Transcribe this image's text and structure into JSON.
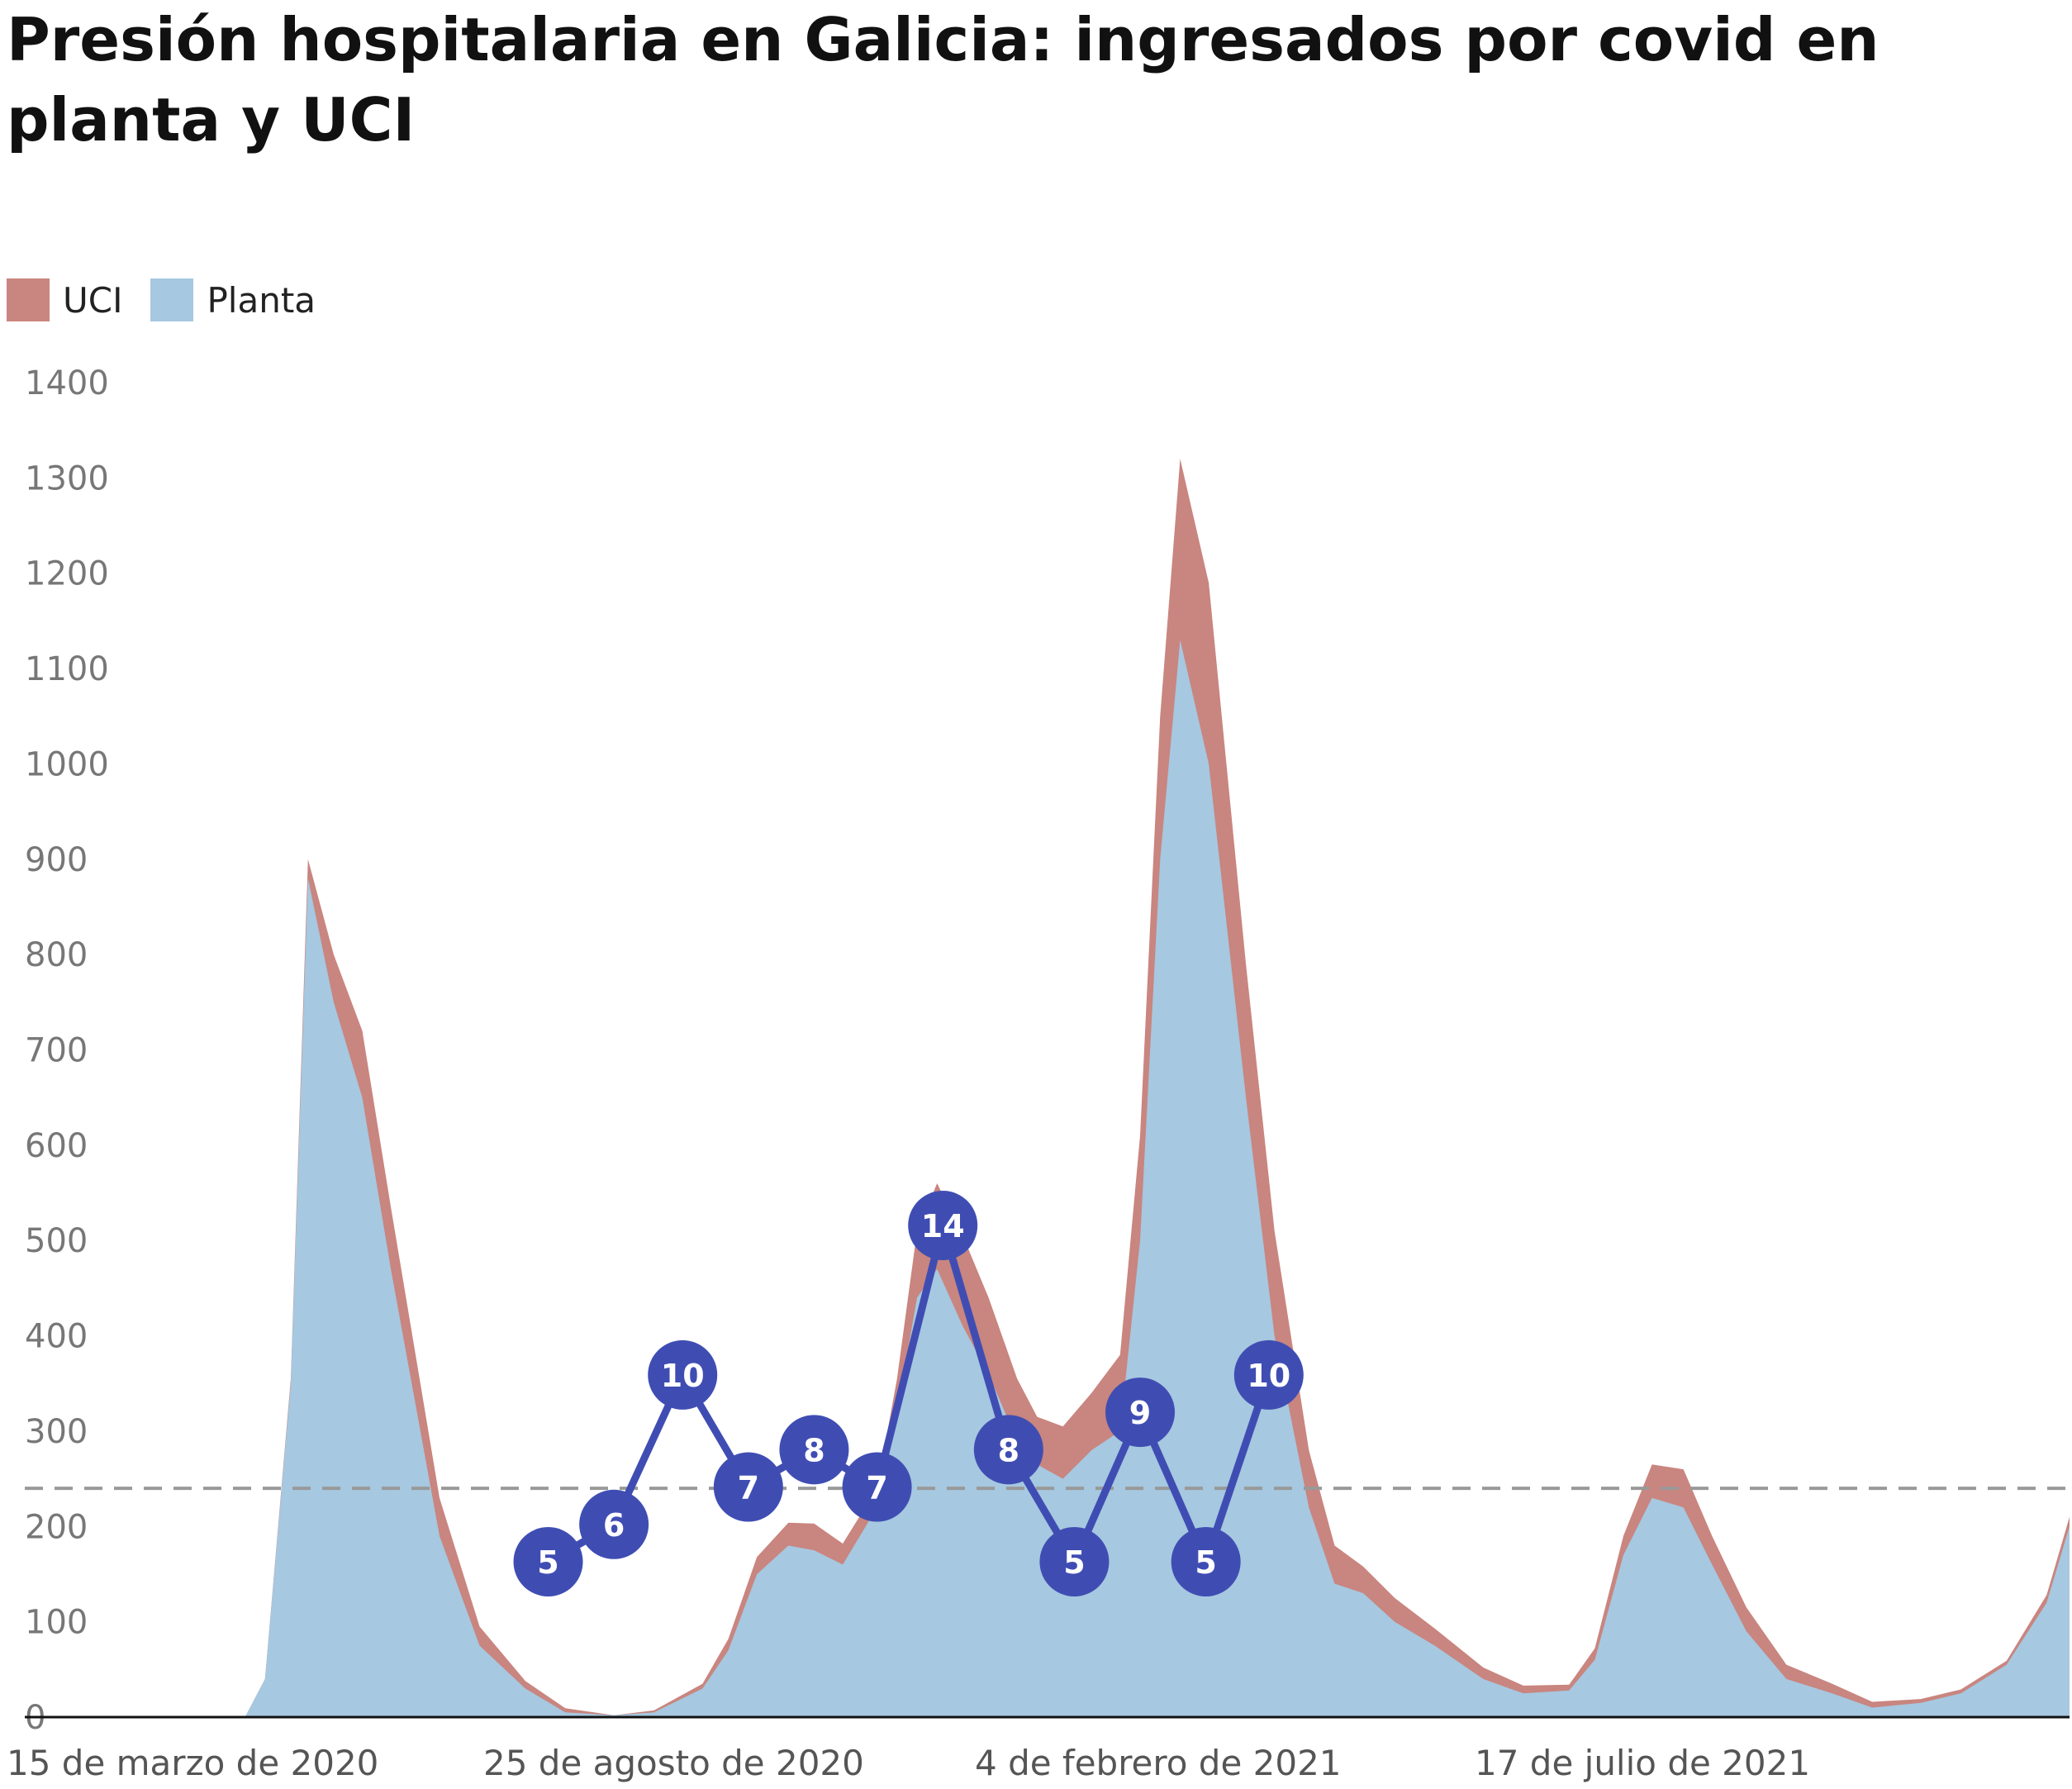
{
  "chart_data": {
    "type": "area",
    "title": "Presión hospitalaria en Galicia: ingresados por covid en planta y UCI",
    "stacked": true,
    "xlabel": "",
    "ylabel": "",
    "x_range": [
      "2020-03-15",
      "2021-12-23"
    ],
    "ylim": [
      0,
      1400
    ],
    "y_ticks": [
      0,
      100,
      200,
      300,
      400,
      500,
      600,
      700,
      800,
      900,
      1000,
      1100,
      1200,
      1300,
      1400
    ],
    "x_tick_labels": [
      {
        "date": "2020-03-15",
        "label": "15 de marzo de 2020"
      },
      {
        "date": "2020-08-25",
        "label": "25 de agosto de 2020"
      },
      {
        "date": "2021-02-04",
        "label": "4 de febrero de 2021"
      },
      {
        "date": "2021-07-17",
        "label": "17 de julio de 2021"
      }
    ],
    "legend_position": "top-left",
    "grid": false,
    "reference_line": {
      "value": 240,
      "style": "dashed",
      "color": "#999999"
    },
    "series": [
      {
        "name": "UCI",
        "color": "#c9857f",
        "x": [
          "2020-04-10",
          "2020-04-16",
          "2020-04-25",
          "2020-05-05",
          "2020-05-15",
          "2020-06-01",
          "2020-06-15",
          "2020-07-01",
          "2020-08-01",
          "2020-08-15",
          "2020-09-01",
          "2020-09-10",
          "2020-09-20",
          "2020-10-01",
          "2020-10-10",
          "2020-10-20",
          "2020-11-01",
          "2020-11-08",
          "2020-11-15",
          "2020-11-22",
          "2020-12-01",
          "2020-12-10",
          "2020-12-20",
          "2020-12-27",
          "2021-01-05",
          "2021-01-15",
          "2021-01-25",
          "2021-02-01",
          "2021-02-08",
          "2021-02-15",
          "2021-02-25",
          "2021-03-10",
          "2021-03-20",
          "2021-04-01",
          "2021-04-10",
          "2021-04-20",
          "2021-05-01",
          "2021-05-15",
          "2021-06-01",
          "2021-06-15",
          "2021-07-01",
          "2021-07-10",
          "2021-07-20",
          "2021-07-30",
          "2021-08-10",
          "2021-08-20",
          "2021-09-01",
          "2021-09-15",
          "2021-10-01",
          "2021-10-15",
          "2021-11-01",
          "2021-11-15",
          "2021-12-01",
          "2021-12-15",
          "2021-12-23"
        ],
        "values": [
          5,
          20,
          50,
          70,
          65,
          40,
          20,
          8,
          0,
          2,
          5,
          12,
          18,
          24,
          28,
          22,
          20,
          35,
          70,
          90,
          95,
          80,
          65,
          50,
          55,
          60,
          80,
          110,
          150,
          190,
          190,
          140,
          110,
          60,
          40,
          28,
          25,
          18,
          12,
          8,
          6,
          12,
          20,
          35,
          40,
          30,
          25,
          15,
          10,
          6,
          4,
          4,
          4,
          8,
          10
        ]
      },
      {
        "name": "Planta",
        "color": "#a6c8e0",
        "x": [
          "2020-03-15",
          "2020-03-25",
          "2020-04-01",
          "2020-04-10",
          "2020-04-16",
          "2020-04-25",
          "2020-05-05",
          "2020-05-15",
          "2020-06-01",
          "2020-06-15",
          "2020-07-01",
          "2020-07-15",
          "2020-08-01",
          "2020-08-15",
          "2020-09-01",
          "2020-09-10",
          "2020-09-20",
          "2020-10-01",
          "2020-10-10",
          "2020-10-20",
          "2020-11-01",
          "2020-11-08",
          "2020-11-15",
          "2020-11-22",
          "2020-12-01",
          "2020-12-10",
          "2020-12-20",
          "2020-12-27",
          "2021-01-05",
          "2021-01-15",
          "2021-01-25",
          "2021-02-01",
          "2021-02-08",
          "2021-02-15",
          "2021-02-25",
          "2021-03-10",
          "2021-03-20",
          "2021-04-01",
          "2021-04-10",
          "2021-04-20",
          "2021-05-01",
          "2021-05-15",
          "2021-06-01",
          "2021-06-15",
          "2021-07-01",
          "2021-07-10",
          "2021-07-20",
          "2021-07-30",
          "2021-08-10",
          "2021-08-20",
          "2021-09-01",
          "2021-09-15",
          "2021-10-01",
          "2021-10-15",
          "2021-11-01",
          "2021-11-15",
          "2021-12-01",
          "2021-12-15",
          "2021-12-23"
        ],
        "values": [
          0,
          0,
          40,
          350,
          880,
          750,
          650,
          470,
          190,
          75,
          30,
          5,
          2,
          5,
          30,
          70,
          150,
          180,
          175,
          160,
          220,
          320,
          440,
          470,
          410,
          360,
          290,
          265,
          250,
          280,
          300,
          500,
          900,
          1130,
          1000,
          650,
          400,
          220,
          140,
          130,
          100,
          75,
          40,
          25,
          28,
          60,
          170,
          230,
          220,
          160,
          90,
          40,
          25,
          10,
          15,
          25,
          55,
          120,
          200
        ]
      }
    ],
    "overlay_series": {
      "type": "line",
      "color": "#3f4db3",
      "points": [
        {
          "x": "2020-07-09",
          "value": 5
        },
        {
          "x": "2020-08-01",
          "value": 6
        },
        {
          "x": "2020-08-25",
          "value": 10
        },
        {
          "x": "2020-09-17",
          "value": 7
        },
        {
          "x": "2020-10-10",
          "value": 8
        },
        {
          "x": "2020-11-01",
          "value": 7
        },
        {
          "x": "2020-11-24",
          "value": 14
        },
        {
          "x": "2020-12-17",
          "value": 8
        },
        {
          "x": "2021-01-09",
          "value": 5
        },
        {
          "x": "2021-02-01",
          "value": 9
        },
        {
          "x": "2021-02-24",
          "value": 5
        },
        {
          "x": "2021-03-18",
          "value": 10
        }
      ]
    }
  }
}
